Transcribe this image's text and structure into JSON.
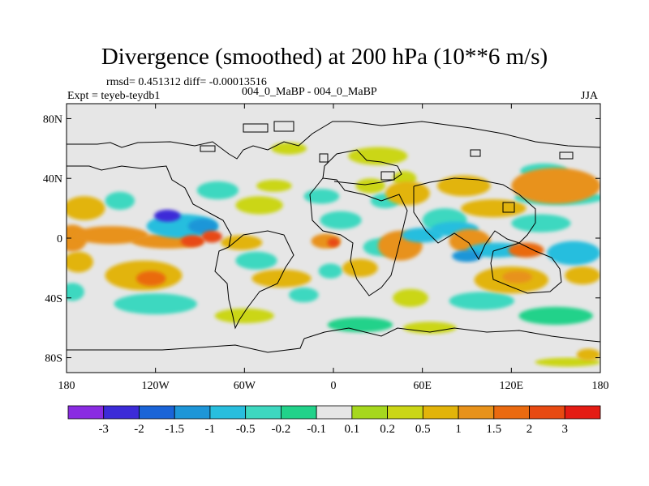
{
  "chart_data": {
    "type": "heatmap",
    "title": "Divergence (smoothed) at 200 hPa (10**6 m/s)",
    "stats_line": "rmsd= 0.451312 diff= -0.00013516",
    "subtitle": "004_0_MaBP - 004_0_MaBP",
    "expt_label": "Expt = teyeb-teydb1",
    "season": "JJA",
    "x_axis": {
      "range": [
        -180,
        180
      ],
      "ticks": [
        {
          "value": -180,
          "label": "180"
        },
        {
          "value": -120,
          "label": "120W"
        },
        {
          "value": -60,
          "label": "60W"
        },
        {
          "value": 0,
          "label": "0"
        },
        {
          "value": 60,
          "label": "60E"
        },
        {
          "value": 120,
          "label": "120E"
        },
        {
          "value": 180,
          "label": "180"
        }
      ]
    },
    "y_axis": {
      "range": [
        -90,
        90
      ],
      "ticks": [
        {
          "value": 80,
          "label": "80N"
        },
        {
          "value": 40,
          "label": "40N"
        },
        {
          "value": 0,
          "label": "0"
        },
        {
          "value": -40,
          "label": "40S"
        },
        {
          "value": -80,
          "label": "80S"
        }
      ]
    },
    "colorbar": {
      "colors": [
        "#8a2be2",
        "#3c2bd8",
        "#1a64d8",
        "#1e96d8",
        "#28bede",
        "#3ed8c0",
        "#22d28a",
        "#e6e6e6",
        "#a6d81e",
        "#cbd616",
        "#e2b40a",
        "#e8921a",
        "#ea6a10",
        "#e84a12",
        "#e41c14"
      ],
      "labels": [
        "-3",
        "-2",
        "-1.5",
        "-1",
        "-0.5",
        "-0.2",
        "-0.1",
        "0.1",
        "0.2",
        "0.5",
        "1",
        "1.5",
        "2",
        "3"
      ]
    },
    "anomalies": [
      {
        "lon": -168,
        "lat": 20,
        "rx": 14,
        "ry": 8,
        "v": 0.5
      },
      {
        "lon": -176,
        "lat": 0,
        "rx": 10,
        "ry": 9,
        "v": 1
      },
      {
        "lon": -150,
        "lat": 2,
        "rx": 25,
        "ry": 6,
        "v": 1
      },
      {
        "lon": -112,
        "lat": -2,
        "rx": 24,
        "ry": 5,
        "v": 1
      },
      {
        "lon": -82,
        "lat": 1,
        "rx": 7,
        "ry": 4,
        "v": 2.5
      },
      {
        "lon": -95,
        "lat": -2,
        "rx": 8,
        "ry": 4,
        "v": 2
      },
      {
        "lon": -128,
        "lat": -25,
        "rx": 26,
        "ry": 10,
        "v": 0.5
      },
      {
        "lon": -123,
        "lat": -27,
        "rx": 10,
        "ry": 5,
        "v": 1.5
      },
      {
        "lon": -172,
        "lat": -16,
        "rx": 10,
        "ry": 7,
        "v": 0.5
      },
      {
        "lon": -144,
        "lat": 25,
        "rx": 10,
        "ry": 6,
        "v": -0.5
      },
      {
        "lon": -102,
        "lat": 8,
        "rx": 24,
        "ry": 8,
        "v": -1
      },
      {
        "lon": -112,
        "lat": 15,
        "rx": 9,
        "ry": 4,
        "v": -2.5
      },
      {
        "lon": -88,
        "lat": 8,
        "rx": 10,
        "ry": 5,
        "v": -1.5
      },
      {
        "lon": -120,
        "lat": -44,
        "rx": 28,
        "ry": 7,
        "v": -0.3
      },
      {
        "lon": -176,
        "lat": -36,
        "rx": 8,
        "ry": 6,
        "v": -0.3
      },
      {
        "lon": -140,
        "lat": -58,
        "rx": 24,
        "ry": 8,
        "v": -0.1
      },
      {
        "lon": -165,
        "lat": -72,
        "rx": 14,
        "ry": 5,
        "v": -0.1
      },
      {
        "lon": -78,
        "lat": 32,
        "rx": 14,
        "ry": 6,
        "v": -0.3
      },
      {
        "lon": -50,
        "lat": 22,
        "rx": 16,
        "ry": 6,
        "v": 0.3
      },
      {
        "lon": -40,
        "lat": 35,
        "rx": 12,
        "ry": 4,
        "v": 0.3
      },
      {
        "lon": -62,
        "lat": -3,
        "rx": 14,
        "ry": 5,
        "v": 0.5
      },
      {
        "lon": -52,
        "lat": -15,
        "rx": 14,
        "ry": 6,
        "v": -0.5
      },
      {
        "lon": -35,
        "lat": -27,
        "rx": 20,
        "ry": 6,
        "v": 0.5
      },
      {
        "lon": -20,
        "lat": -38,
        "rx": 10,
        "ry": 5,
        "v": -0.3
      },
      {
        "lon": -60,
        "lat": -52,
        "rx": 20,
        "ry": 5,
        "v": 0.3
      },
      {
        "lon": -25,
        "lat": -63,
        "rx": 14,
        "ry": 4,
        "v": -0.1
      },
      {
        "lon": -5,
        "lat": -2,
        "rx": 10,
        "ry": 5,
        "v": 1
      },
      {
        "lon": 0,
        "lat": -3,
        "rx": 4,
        "ry": 3,
        "v": 2.5
      },
      {
        "lon": 5,
        "lat": 12,
        "rx": 14,
        "ry": 6,
        "v": -0.5
      },
      {
        "lon": -8,
        "lat": 28,
        "rx": 12,
        "ry": 5,
        "v": -0.3
      },
      {
        "lon": 35,
        "lat": 25,
        "rx": 10,
        "ry": 5,
        "v": -0.5
      },
      {
        "lon": 25,
        "lat": 35,
        "rx": 10,
        "ry": 5,
        "v": 0.3
      },
      {
        "lon": 18,
        "lat": -20,
        "rx": 12,
        "ry": 6,
        "v": 0.5
      },
      {
        "lon": -2,
        "lat": -22,
        "rx": 8,
        "ry": 5,
        "v": -0.3
      },
      {
        "lon": 45,
        "lat": -5,
        "rx": 15,
        "ry": 10,
        "v": 1
      },
      {
        "lon": 32,
        "lat": -6,
        "rx": 12,
        "ry": 6,
        "v": -0.5
      },
      {
        "lon": 52,
        "lat": -40,
        "rx": 12,
        "ry": 6,
        "v": 0.3
      },
      {
        "lon": 18,
        "lat": -58,
        "rx": 22,
        "ry": 5,
        "v": -0.2
      },
      {
        "lon": 65,
        "lat": -60,
        "rx": 18,
        "ry": 4,
        "v": 0.3
      },
      {
        "lon": 70,
        "lat": -74,
        "rx": 12,
        "ry": 4,
        "v": -0.1
      },
      {
        "lon": 50,
        "lat": 30,
        "rx": 15,
        "ry": 8,
        "v": 0.5
      },
      {
        "lon": 48,
        "lat": 40,
        "rx": 8,
        "ry": 5,
        "v": 0.3
      },
      {
        "lon": 75,
        "lat": 12,
        "rx": 15,
        "ry": 8,
        "v": -0.5
      },
      {
        "lon": 82,
        "lat": 6,
        "rx": 16,
        "ry": 5,
        "v": -1
      },
      {
        "lon": 60,
        "lat": 2,
        "rx": 14,
        "ry": 5,
        "v": -1
      },
      {
        "lon": 92,
        "lat": -2,
        "rx": 14,
        "ry": 8,
        "v": 1
      },
      {
        "lon": 110,
        "lat": -8,
        "rx": 20,
        "ry": 5,
        "v": -1
      },
      {
        "lon": 90,
        "lat": -12,
        "rx": 10,
        "ry": 4,
        "v": -1.5
      },
      {
        "lon": 88,
        "lat": 35,
        "rx": 18,
        "ry": 7,
        "v": 0.5
      },
      {
        "lon": 108,
        "lat": 20,
        "rx": 22,
        "ry": 6,
        "v": 0.5
      },
      {
        "lon": 120,
        "lat": -28,
        "rx": 25,
        "ry": 9,
        "v": 0.5
      },
      {
        "lon": 124,
        "lat": -26,
        "rx": 10,
        "ry": 4,
        "v": 1
      },
      {
        "lon": 100,
        "lat": -42,
        "rx": 22,
        "ry": 6,
        "v": -0.3
      },
      {
        "lon": 140,
        "lat": 10,
        "rx": 20,
        "ry": 6,
        "v": -0.5
      },
      {
        "lon": 130,
        "lat": -8,
        "rx": 12,
        "ry": 5,
        "v": 1.5
      },
      {
        "lon": 150,
        "lat": 35,
        "rx": 30,
        "ry": 12,
        "v": 1
      },
      {
        "lon": 142,
        "lat": 45,
        "rx": 16,
        "ry": 5,
        "v": -0.5
      },
      {
        "lon": 152,
        "lat": 27,
        "rx": 30,
        "ry": 5,
        "v": -0.5
      },
      {
        "lon": 162,
        "lat": -10,
        "rx": 18,
        "ry": 8,
        "v": -1
      },
      {
        "lon": 168,
        "lat": -25,
        "rx": 12,
        "ry": 6,
        "v": 0.5
      },
      {
        "lon": 150,
        "lat": -52,
        "rx": 25,
        "ry": 6,
        "v": -0.2
      },
      {
        "lon": 172,
        "lat": -78,
        "rx": 8,
        "ry": 4,
        "v": 0.5
      },
      {
        "lon": 158,
        "lat": -83,
        "rx": 22,
        "ry": 3,
        "v": 0.2
      },
      {
        "lon": 140,
        "lat": 78,
        "rx": 40,
        "ry": 4,
        "v": -0.1
      },
      {
        "lon": -30,
        "lat": 60,
        "rx": 12,
        "ry": 4,
        "v": 0.2
      },
      {
        "lon": 30,
        "lat": 55,
        "rx": 20,
        "ry": 6,
        "v": 0.2
      }
    ]
  }
}
